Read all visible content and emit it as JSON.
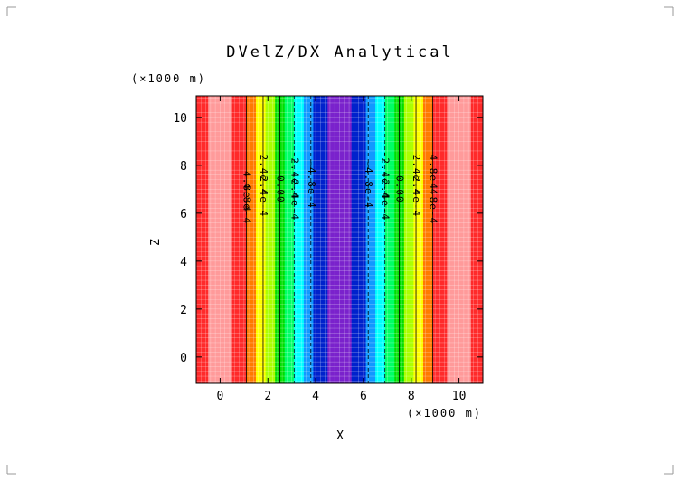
{
  "chart_data": {
    "type": "heatmap",
    "title": "DVelZ/DX Analytical",
    "xlabel": "X",
    "ylabel": "Z",
    "x_unit": "(×1000 m)",
    "y_unit": "(×1000 m)",
    "xlim": [
      -1,
      11
    ],
    "ylim": [
      -1.1,
      10.9
    ],
    "x_ticks": [
      "0",
      "2",
      "4",
      "6",
      "8",
      "10"
    ],
    "y_ticks": [
      "0",
      "2",
      "4",
      "6",
      "8",
      "10"
    ],
    "x_tick_values": [
      0,
      2,
      4,
      6,
      8,
      10
    ],
    "y_tick_values": [
      0,
      2,
      4,
      6,
      8,
      10
    ],
    "bands": [
      {
        "x0": -1.0,
        "x1": -0.5,
        "color": "#ff2a2a"
      },
      {
        "x0": -0.5,
        "x1": 0.5,
        "color": "#ff9a9a"
      },
      {
        "x0": 0.5,
        "x1": 1.1,
        "color": "#ff2a2a"
      },
      {
        "x0": 1.1,
        "x1": 1.5,
        "color": "#ff7a00"
      },
      {
        "x0": 1.5,
        "x1": 1.9,
        "color": "#ffff00"
      },
      {
        "x0": 1.9,
        "x1": 2.3,
        "color": "#aaff00"
      },
      {
        "x0": 2.3,
        "x1": 2.7,
        "color": "#00dd00"
      },
      {
        "x0": 2.7,
        "x1": 3.1,
        "color": "#00ff66"
      },
      {
        "x0": 3.1,
        "x1": 3.5,
        "color": "#00ffff"
      },
      {
        "x0": 3.5,
        "x1": 3.9,
        "color": "#1199ff"
      },
      {
        "x0": 3.9,
        "x1": 4.5,
        "color": "#0022cc"
      },
      {
        "x0": 4.5,
        "x1": 5.5,
        "color": "#7a22cc"
      },
      {
        "x0": 5.5,
        "x1": 6.1,
        "color": "#0022cc"
      },
      {
        "x0": 6.1,
        "x1": 6.5,
        "color": "#1199ff"
      },
      {
        "x0": 6.5,
        "x1": 6.9,
        "color": "#00ffff"
      },
      {
        "x0": 6.9,
        "x1": 7.3,
        "color": "#00ff66"
      },
      {
        "x0": 7.3,
        "x1": 7.7,
        "color": "#00dd00"
      },
      {
        "x0": 7.7,
        "x1": 8.1,
        "color": "#aaff00"
      },
      {
        "x0": 8.1,
        "x1": 8.5,
        "color": "#ffff00"
      },
      {
        "x0": 8.5,
        "x1": 8.9,
        "color": "#ff7a00"
      },
      {
        "x0": 8.9,
        "x1": 9.5,
        "color": "#ff2a2a"
      },
      {
        "x0": 9.5,
        "x1": 10.5,
        "color": "#ff9a9a"
      },
      {
        "x0": 10.5,
        "x1": 11.0,
        "color": "#ff2a2a"
      }
    ],
    "contours": [
      {
        "x": 1.1,
        "label": "4.8e-4",
        "style": "solid",
        "label_y": [
          6.9,
          6.4
        ]
      },
      {
        "x": 1.8,
        "label": "2.4e-4",
        "style": "solid",
        "label_y": [
          7.6,
          6.7
        ]
      },
      {
        "x": 2.5,
        "label": "0.00",
        "style": "solid",
        "label_y": [
          7.0
        ]
      },
      {
        "x": 3.1,
        "label": "-2.4e-4",
        "style": "dashed",
        "label_y": [
          7.6,
          6.7
        ]
      },
      {
        "x": 3.8,
        "label": "-4.8e-4",
        "style": "dashed",
        "label_y": [
          7.2
        ]
      },
      {
        "x": 6.2,
        "label": "-4.8e-4",
        "style": "dashed",
        "label_y": [
          7.2
        ]
      },
      {
        "x": 6.9,
        "label": "-2.4e-4",
        "style": "dashed",
        "label_y": [
          7.6,
          6.7
        ]
      },
      {
        "x": 7.5,
        "label": "0.00",
        "style": "solid",
        "label_y": [
          7.0
        ]
      },
      {
        "x": 8.2,
        "label": "2.4e-4",
        "style": "solid",
        "label_y": [
          7.6,
          6.7
        ]
      },
      {
        "x": 8.9,
        "label": "4.8e-4",
        "style": "solid",
        "label_y": [
          7.6,
          6.4
        ]
      }
    ],
    "grid": true
  }
}
